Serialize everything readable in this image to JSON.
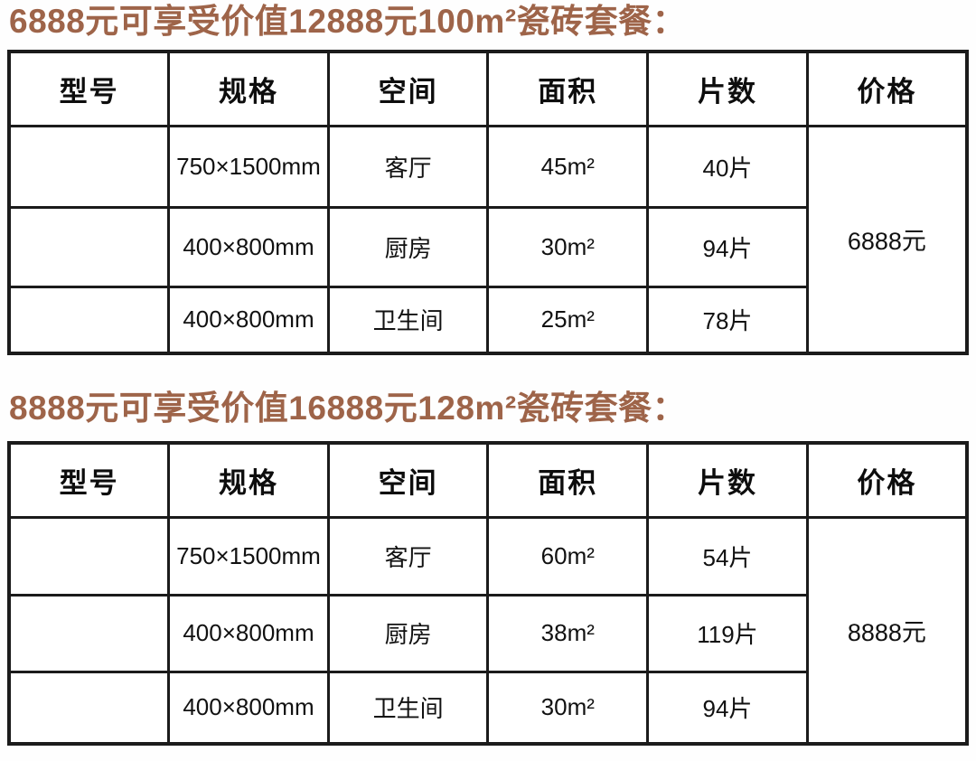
{
  "colors": {
    "title": "#9e6449",
    "text": "#161616",
    "border": "#1b1b1b",
    "background": "#fefefe"
  },
  "sections": [
    {
      "title": "6888元可享受价值12888元100m²瓷砖套餐：",
      "table": {
        "headers": [
          "型号",
          "规格",
          "空间",
          "面积",
          "片数",
          "价格"
        ],
        "rows": [
          {
            "model": "",
            "spec": "750×1500mm",
            "space": "客厅",
            "area": "45m²",
            "pieces": "40片"
          },
          {
            "model": "",
            "spec": "400×800mm",
            "space": "厨房",
            "area": "30m²",
            "pieces": "94片"
          },
          {
            "model": "",
            "spec": "400×800mm",
            "space": "卫生间",
            "area": "25m²",
            "pieces": "78片"
          }
        ],
        "price": "6888元"
      }
    },
    {
      "title": "8888元可享受价值16888元128m²瓷砖套餐：",
      "table": {
        "headers": [
          "型号",
          "规格",
          "空间",
          "面积",
          "片数",
          "价格"
        ],
        "rows": [
          {
            "model": "",
            "spec": "750×1500mm",
            "space": "客厅",
            "area": "60m²",
            "pieces": "54片"
          },
          {
            "model": "",
            "spec": "400×800mm",
            "space": "厨房",
            "area": "38m²",
            "pieces": "119片"
          },
          {
            "model": "",
            "spec": "400×800mm",
            "space": "卫生间",
            "area": "30m²",
            "pieces": "94片"
          }
        ],
        "price": "8888元"
      }
    }
  ]
}
